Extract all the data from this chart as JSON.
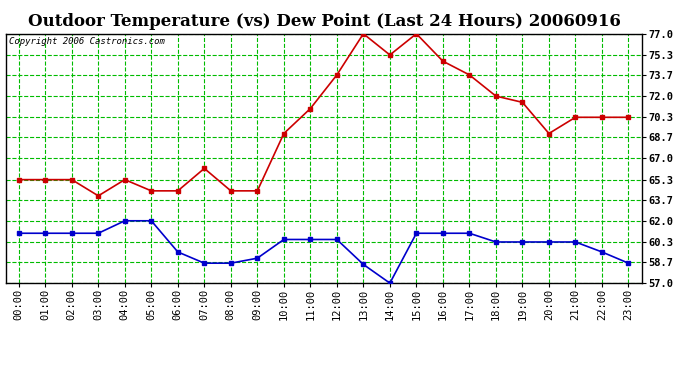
{
  "title": "Outdoor Temperature (vs) Dew Point (Last 24 Hours) 20060916",
  "copyright": "Copyright 2006 Castronics.com",
  "x_labels": [
    "00:00",
    "01:00",
    "02:00",
    "03:00",
    "04:00",
    "05:00",
    "06:00",
    "07:00",
    "08:00",
    "09:00",
    "10:00",
    "11:00",
    "12:00",
    "13:00",
    "14:00",
    "15:00",
    "16:00",
    "17:00",
    "18:00",
    "19:00",
    "20:00",
    "21:00",
    "22:00",
    "23:00"
  ],
  "temp_data": [
    65.3,
    65.3,
    65.3,
    64.0,
    65.3,
    64.4,
    64.4,
    66.2,
    64.4,
    64.4,
    69.0,
    71.0,
    73.7,
    77.0,
    75.3,
    77.0,
    74.8,
    73.7,
    72.0,
    71.5,
    69.0,
    70.3,
    70.3,
    70.3
  ],
  "dew_data": [
    61.0,
    61.0,
    61.0,
    61.0,
    62.0,
    62.0,
    59.5,
    58.6,
    58.6,
    59.0,
    60.5,
    60.5,
    60.5,
    58.5,
    57.0,
    61.0,
    61.0,
    61.0,
    60.3,
    60.3,
    60.3,
    60.3,
    59.5,
    58.6
  ],
  "temp_color": "#cc0000",
  "dew_color": "#0000cc",
  "bg_color": "#ffffff",
  "plot_bg_color": "#ffffff",
  "grid_color_major": "#aaaaaa",
  "grid_color_minor": "#00bb00",
  "ylim": [
    57.0,
    77.0
  ],
  "yticks": [
    57.0,
    58.7,
    60.3,
    62.0,
    63.7,
    65.3,
    67.0,
    68.7,
    70.3,
    72.0,
    73.7,
    75.3,
    77.0
  ],
  "title_fontsize": 12,
  "copyright_fontsize": 6.5,
  "tick_fontsize": 7.5
}
